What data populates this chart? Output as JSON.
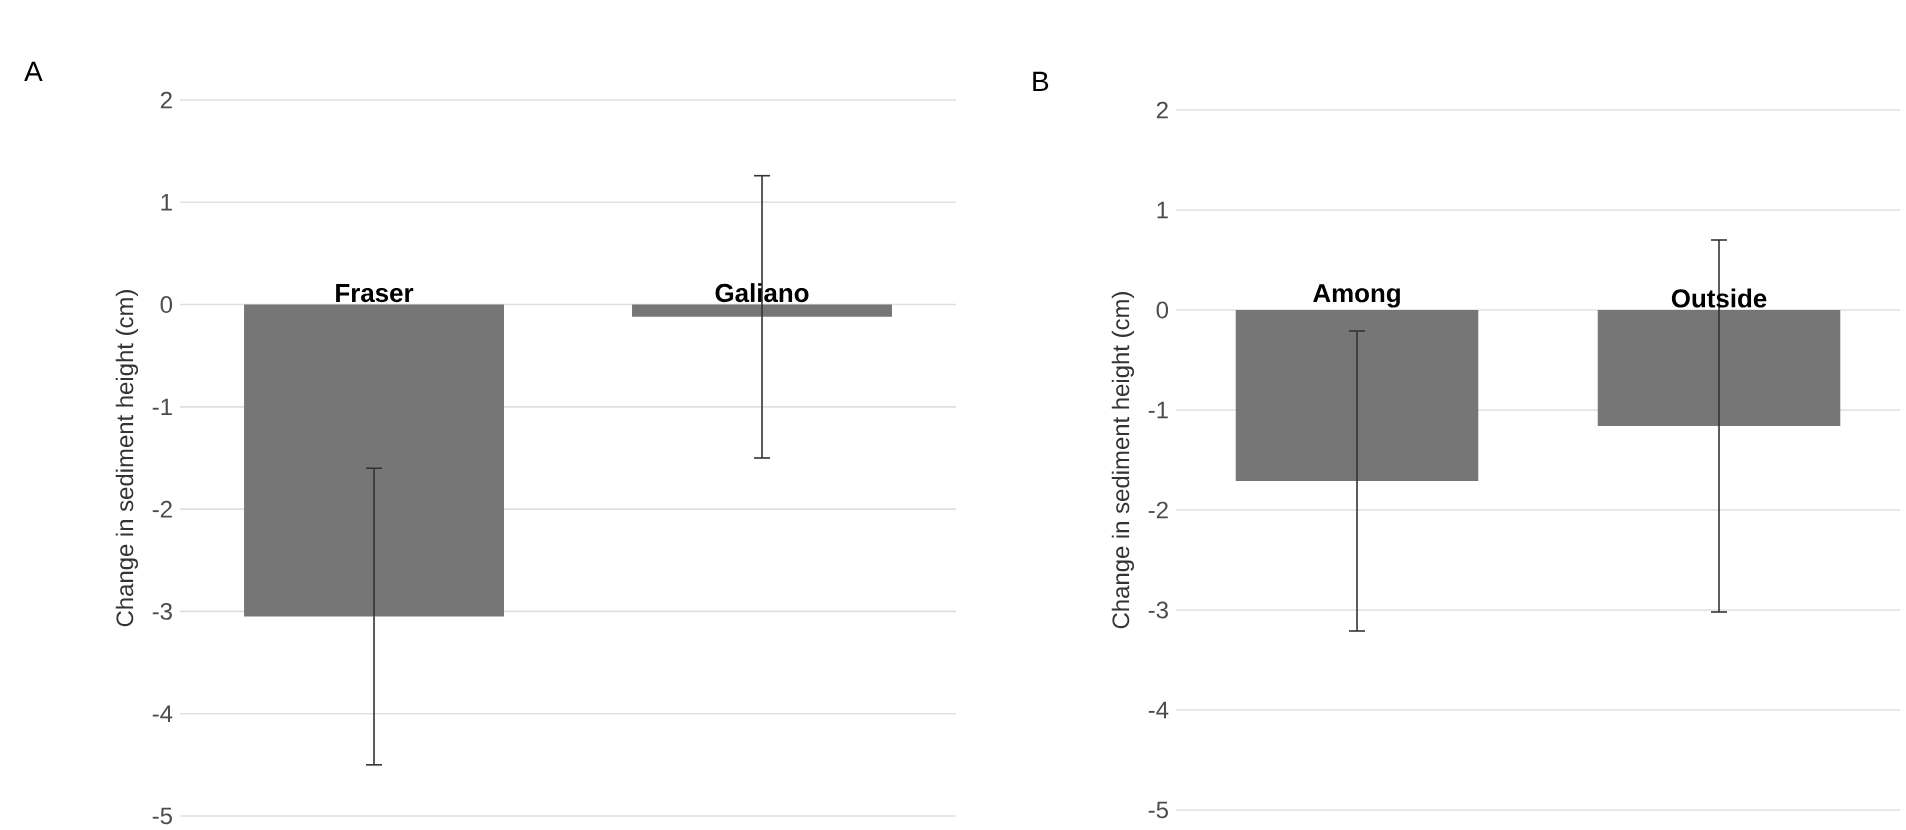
{
  "chart_data": [
    {
      "type": "bar",
      "title": "A",
      "ylabel": "Change in sediment height (cm)",
      "categories": [
        "Fraser",
        "Galiano"
      ],
      "values": [
        -3.05,
        -0.12
      ],
      "errors": [
        1.45,
        1.38
      ],
      "color": "#767676",
      "ylim": [
        -5,
        2
      ],
      "yticks": [
        -5,
        -4,
        -3,
        -2,
        -1,
        0,
        1,
        2
      ],
      "grid": "y"
    },
    {
      "type": "bar",
      "title": "B",
      "ylabel": "Change in sediment height (cm)",
      "categories": [
        "Among",
        "Outside"
      ],
      "values": [
        -1.71,
        -1.16
      ],
      "errors": [
        1.5,
        1.86
      ],
      "color": "#767676",
      "ylim": [
        -5,
        2
      ],
      "yticks": [
        -5,
        -4,
        -3,
        -2,
        -1,
        0,
        1,
        2
      ],
      "grid": "y"
    }
  ]
}
